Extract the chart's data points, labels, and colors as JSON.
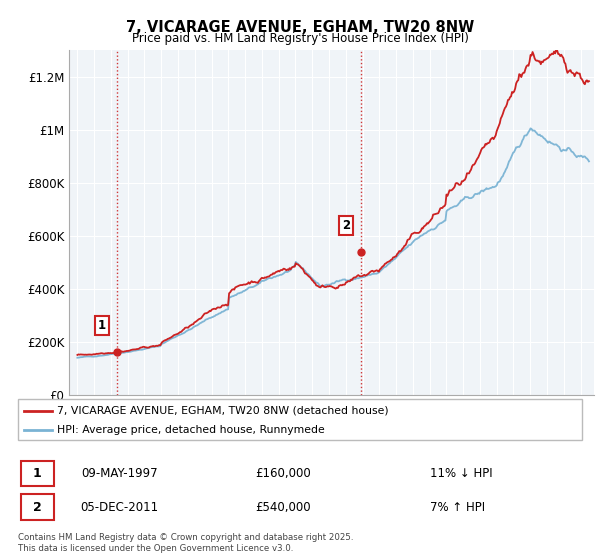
{
  "title": "7, VICARAGE AVENUE, EGHAM, TW20 8NW",
  "subtitle": "Price paid vs. HM Land Registry's House Price Index (HPI)",
  "ylabel_ticks": [
    "£0",
    "£200K",
    "£400K",
    "£600K",
    "£800K",
    "£1M",
    "£1.2M"
  ],
  "ytick_values": [
    0,
    200000,
    400000,
    600000,
    800000,
    1000000,
    1200000
  ],
  "ylim": [
    0,
    1300000
  ],
  "xlim_start": 1994.5,
  "xlim_end": 2025.8,
  "sale1_date": 1997.36,
  "sale1_price": 160000,
  "sale2_date": 2011.92,
  "sale2_price": 540000,
  "hpi_color": "#7ab3d4",
  "price_color": "#cc2222",
  "vline_color": "#cc2222",
  "legend_label_price": "7, VICARAGE AVENUE, EGHAM, TW20 8NW (detached house)",
  "legend_label_hpi": "HPI: Average price, detached house, Runnymede",
  "table_row1": [
    "1",
    "09-MAY-1997",
    "£160,000",
    "11% ↓ HPI"
  ],
  "table_row2": [
    "2",
    "05-DEC-2011",
    "£540,000",
    "7% ↑ HPI"
  ],
  "footer": "Contains HM Land Registry data © Crown copyright and database right 2025.\nThis data is licensed under the Open Government Licence v3.0.",
  "background_color": "#f0f4f8",
  "grid_color": "#ffffff"
}
